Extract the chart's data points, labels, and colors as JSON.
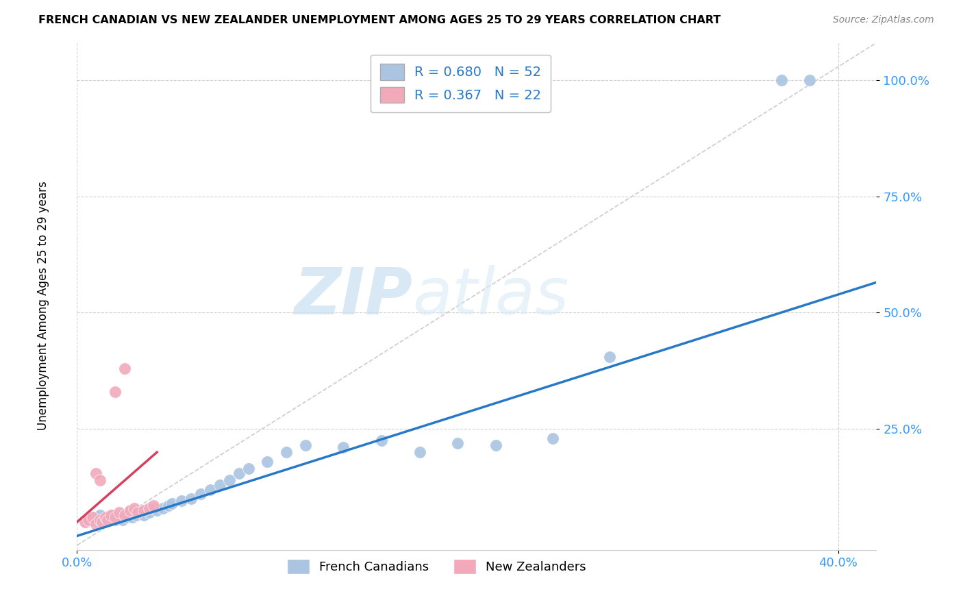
{
  "title": "FRENCH CANADIAN VS NEW ZEALANDER UNEMPLOYMENT AMONG AGES 25 TO 29 YEARS CORRELATION CHART",
  "source": "Source: ZipAtlas.com",
  "ylabel": "Unemployment Among Ages 25 to 29 years",
  "xlim": [
    0.0,
    0.42
  ],
  "ylim": [
    -0.01,
    1.08
  ],
  "x_ticks": [
    0.0,
    0.4
  ],
  "x_tick_labels": [
    "0.0%",
    "40.0%"
  ],
  "y_ticks": [
    0.25,
    0.5,
    0.75,
    1.0
  ],
  "y_tick_labels": [
    "25.0%",
    "50.0%",
    "75.0%",
    "100.0%"
  ],
  "watermark_zip": "ZIP",
  "watermark_atlas": "atlas",
  "legend_R_blue": "0.680",
  "legend_N_blue": "52",
  "legend_R_pink": "0.367",
  "legend_N_pink": "22",
  "blue_color": "#aac4e2",
  "pink_color": "#f2aabb",
  "blue_line_color": "#2878c8",
  "pink_line_color": "#d84060",
  "tick_color": "#3399ff",
  "grid_color": "#cccccc",
  "blue_scatter_x": [
    0.005,
    0.008,
    0.01,
    0.012,
    0.014,
    0.015,
    0.016,
    0.018,
    0.018,
    0.019,
    0.02,
    0.021,
    0.022,
    0.023,
    0.024,
    0.025,
    0.026,
    0.027,
    0.028,
    0.029,
    0.03,
    0.031,
    0.032,
    0.033,
    0.035,
    0.036,
    0.038,
    0.04,
    0.042,
    0.045,
    0.048,
    0.05,
    0.055,
    0.06,
    0.065,
    0.07,
    0.075,
    0.08,
    0.085,
    0.09,
    0.1,
    0.11,
    0.12,
    0.14,
    0.16,
    0.18,
    0.2,
    0.22,
    0.25,
    0.28,
    0.37,
    0.385
  ],
  "blue_scatter_y": [
    0.05,
    0.055,
    0.06,
    0.065,
    0.05,
    0.055,
    0.06,
    0.055,
    0.06,
    0.065,
    0.055,
    0.06,
    0.065,
    0.06,
    0.055,
    0.065,
    0.06,
    0.07,
    0.065,
    0.06,
    0.07,
    0.065,
    0.075,
    0.07,
    0.065,
    0.075,
    0.07,
    0.08,
    0.075,
    0.08,
    0.085,
    0.09,
    0.095,
    0.1,
    0.11,
    0.12,
    0.13,
    0.14,
    0.155,
    0.165,
    0.18,
    0.2,
    0.215,
    0.21,
    0.225,
    0.2,
    0.22,
    0.215,
    0.23,
    0.405,
    1.0,
    1.0
  ],
  "pink_scatter_x": [
    0.004,
    0.006,
    0.008,
    0.01,
    0.012,
    0.013,
    0.015,
    0.016,
    0.018,
    0.02,
    0.022,
    0.025,
    0.028,
    0.03,
    0.032,
    0.035,
    0.038,
    0.04,
    0.02,
    0.025,
    0.01,
    0.012
  ],
  "pink_scatter_y": [
    0.05,
    0.055,
    0.06,
    0.045,
    0.055,
    0.05,
    0.06,
    0.055,
    0.065,
    0.06,
    0.07,
    0.065,
    0.075,
    0.08,
    0.07,
    0.075,
    0.08,
    0.085,
    0.33,
    0.38,
    0.155,
    0.14
  ],
  "blue_line_x": [
    0.0,
    0.42
  ],
  "blue_line_y": [
    0.02,
    0.565
  ],
  "pink_line_x": [
    0.0,
    0.042
  ],
  "pink_line_y": [
    0.05,
    0.2
  ],
  "diag_line_x": [
    0.0,
    0.42
  ],
  "diag_line_y": [
    0.0,
    1.08
  ]
}
